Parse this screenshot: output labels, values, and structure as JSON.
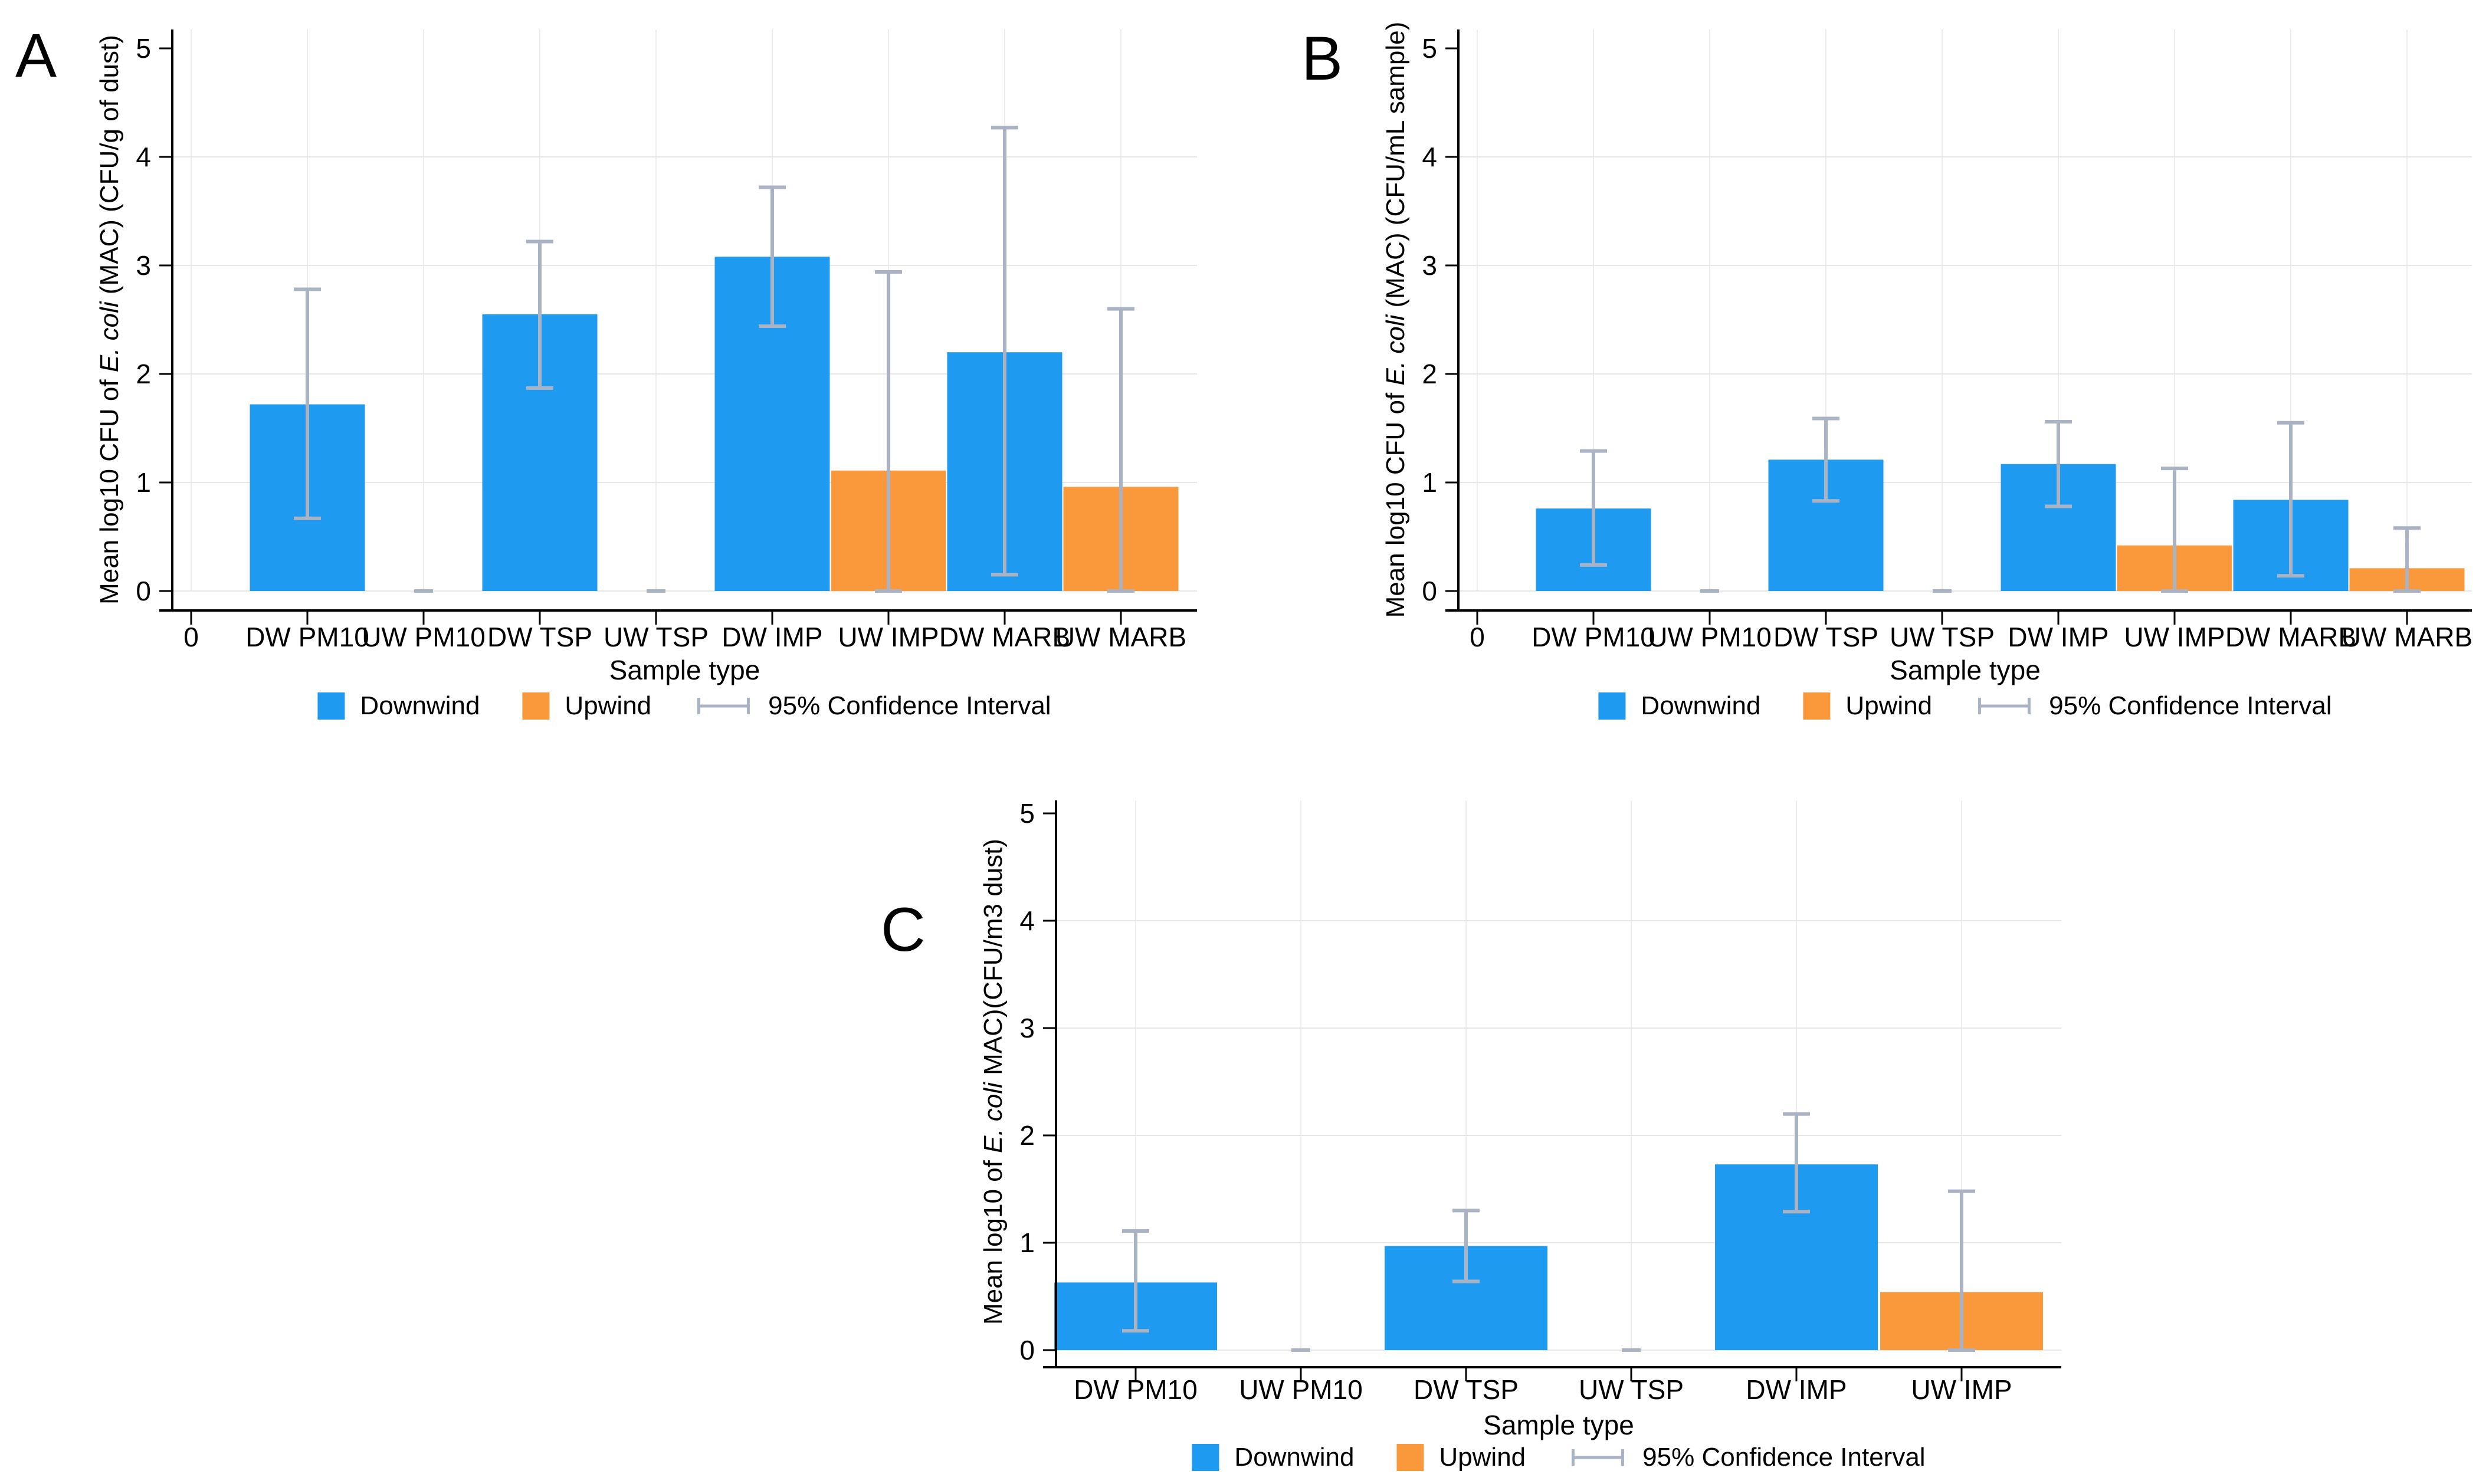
{
  "figure": {
    "xlabel": "Sample type",
    "legend": {
      "downwind": "Downwind",
      "upwind": "Upwind",
      "ci": "95% Confidence Interval"
    },
    "colors": {
      "downwind": "#1E9BF0",
      "upwind": "#F9993B",
      "ci": "#A9B3C3",
      "grid": "#E7E7E7",
      "vgrid": "#ECECEC",
      "axis": "#000000"
    }
  },
  "chart_data": [
    {
      "type": "bar",
      "panel_label": "A",
      "ylabel_prefix": "Mean log10 CFU of ",
      "ylabel_italic": "E. coli",
      "ylabel_suffix": " (MAC) (CFU/g of dust)",
      "xlabel": "Sample type",
      "ylim": [
        0,
        5
      ],
      "yticks": [
        0,
        1,
        2,
        3,
        4,
        5
      ],
      "grid": true,
      "legend_position": "bottom",
      "categories": [
        "0",
        "DW PM10",
        "UW PM10",
        "DW TSP",
        "UW TSP",
        "DW IMP",
        "UW IMP",
        "DW MARB",
        "UW MARB"
      ],
      "group": [
        "",
        "downwind",
        "upwind",
        "downwind",
        "upwind",
        "downwind",
        "upwind",
        "downwind",
        "upwind"
      ],
      "values": [
        null,
        1.72,
        0,
        2.55,
        0,
        3.08,
        1.11,
        2.2,
        0.96
      ],
      "ci_low": [
        null,
        0.67,
        0,
        1.87,
        0,
        2.44,
        0,
        0.15,
        0
      ],
      "ci_high": [
        null,
        2.78,
        0,
        3.22,
        0,
        3.72,
        2.94,
        4.27,
        2.6
      ]
    },
    {
      "type": "bar",
      "panel_label": "B",
      "ylabel_prefix": "Mean log10 CFU of ",
      "ylabel_italic": "E. coli",
      "ylabel_suffix": " (MAC) (CFU/mL sample)",
      "xlabel": "Sample type",
      "ylim": [
        0,
        5
      ],
      "yticks": [
        0,
        1,
        2,
        3,
        4,
        5
      ],
      "grid": true,
      "legend_position": "bottom",
      "categories": [
        "0",
        "DW PM10",
        "UW PM10",
        "DW TSP",
        "UW TSP",
        "DW IMP",
        "UW IMP",
        "DW MARB",
        "UW MARB"
      ],
      "group": [
        "",
        "downwind",
        "upwind",
        "downwind",
        "upwind",
        "downwind",
        "upwind",
        "downwind",
        "upwind"
      ],
      "values": [
        null,
        0.76,
        0,
        1.21,
        0,
        1.17,
        0.42,
        0.84,
        0.21
      ],
      "ci_low": [
        null,
        0.24,
        0,
        0.83,
        0,
        0.78,
        0,
        0.14,
        0
      ],
      "ci_high": [
        null,
        1.29,
        0,
        1.59,
        0,
        1.56,
        1.13,
        1.55,
        0.58
      ]
    },
    {
      "type": "bar",
      "panel_label": "C",
      "ylabel_prefix": "Mean log10 of ",
      "ylabel_italic": "E. coli",
      "ylabel_suffix": " MAC)(CFU/m3 dust)",
      "xlabel": "Sample type",
      "ylim": [
        0,
        5
      ],
      "yticks": [
        0,
        1,
        2,
        3,
        4,
        5
      ],
      "grid": true,
      "legend_position": "bottom",
      "categories": [
        "DW PM10",
        "UW PM10",
        "DW TSP",
        "UW TSP",
        "DW IMP",
        "UW IMP"
      ],
      "group": [
        "downwind",
        "upwind",
        "downwind",
        "upwind",
        "downwind",
        "upwind"
      ],
      "values": [
        0.63,
        0,
        0.97,
        0,
        1.73,
        0.54
      ],
      "ci_low": [
        0.18,
        0,
        0.64,
        0,
        1.29,
        0
      ],
      "ci_high": [
        1.11,
        0,
        1.3,
        0,
        2.2,
        1.48
      ]
    }
  ]
}
